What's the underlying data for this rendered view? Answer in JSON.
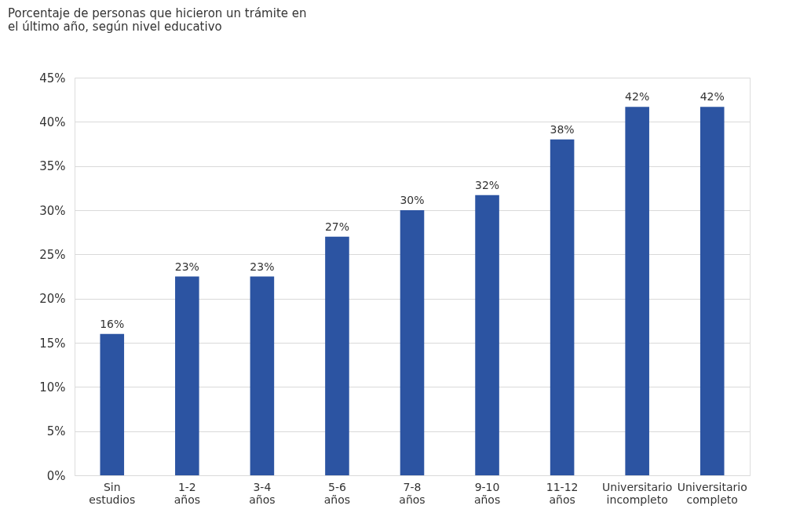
{
  "chart_data": {
    "type": "bar",
    "title": "Porcentaje de personas que hicieron un trámite en el último año, según nivel educativo",
    "categories": [
      "Sin estudios",
      "1-2 años",
      "3-4 años",
      "5-6 años",
      "7-8 años",
      "9-10 años",
      "11-12 años",
      "Universitario incompleto",
      "Universitario completo"
    ],
    "values": [
      16,
      22.5,
      22.5,
      27,
      30,
      31.7,
      38,
      41.7,
      41.7
    ],
    "value_labels": [
      "16%",
      "23%",
      "23%",
      "27%",
      "30%",
      "32%",
      "38%",
      "42%",
      "42%"
    ],
    "color": "#2c54a2",
    "ylim": [
      0,
      45
    ],
    "yticks": [
      {
        "value": 0,
        "label": "0%"
      },
      {
        "value": 5,
        "label": "5%"
      },
      {
        "value": 10,
        "label": "10%"
      },
      {
        "value": 15,
        "label": "15%"
      },
      {
        "value": 20,
        "label": "20%"
      },
      {
        "value": 25,
        "label": "25%"
      },
      {
        "value": 30,
        "label": "30%"
      },
      {
        "value": 35,
        "label": "35%"
      },
      {
        "value": 40,
        "label": "40%"
      },
      {
        "value": 45,
        "label": "45%"
      }
    ],
    "grid": "y"
  }
}
